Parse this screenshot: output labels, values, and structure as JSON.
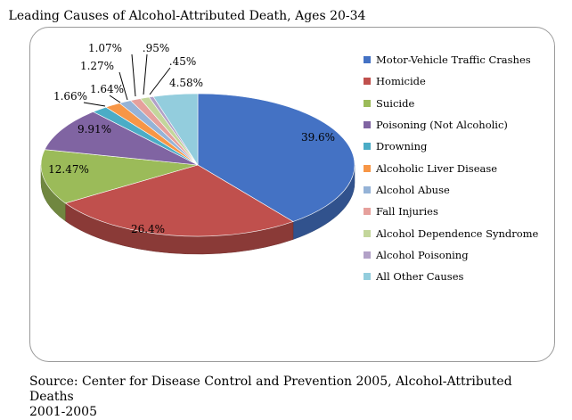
{
  "chart_data": {
    "type": "pie",
    "title": "Leading Causes of Alcohol-Attributed Death, Ages 20-34",
    "categories": [
      "Motor-Vehicle Traffic Crashes",
      "Homicide",
      "Suicide",
      "Poisoning (Not Alcoholic)",
      "Drowning",
      "Alcoholic Liver Disease",
      "Alcohol Abuse",
      "Fall Injuries",
      "Alcohol Dependence Syndrome",
      "Alcohol Poisoning",
      "All Other Causes"
    ],
    "values": [
      39.6,
      26.4,
      12.47,
      9.91,
      1.66,
      1.64,
      1.27,
      1.07,
      0.95,
      0.45,
      4.58
    ],
    "data_labels": [
      "39.6%",
      "26.4%",
      "12.47%",
      "9.91%",
      "1.66%",
      "1.64%",
      "1.27%",
      "1.07%",
      ".95%",
      ".45%",
      "4.58%"
    ],
    "colors": [
      "#4472c4",
      "#c0504d",
      "#9bbb59",
      "#8064a2",
      "#4bacc6",
      "#f79646",
      "#95b3d7",
      "#e6a09c",
      "#c3d69b",
      "#b2a1c7",
      "#93cddd"
    ],
    "legend_position": "right"
  },
  "source": {
    "line1": "Source: Center for Disease Control and Prevention 2005, Alcohol-Attributed Deaths",
    "line2": "2001-2005"
  }
}
